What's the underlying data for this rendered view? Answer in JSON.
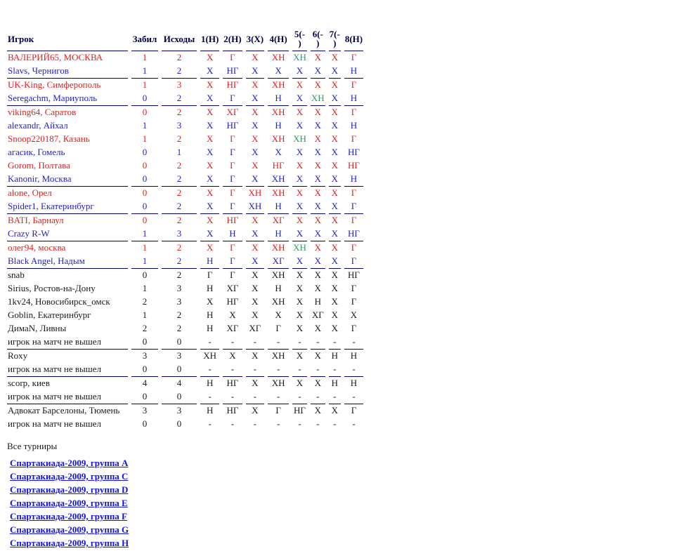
{
  "colors": {
    "red": "#dd2222",
    "blue": "#2222cc",
    "green": "#339966",
    "black": "#1a1a1a",
    "header": "#000044",
    "line": "#000066",
    "link": "#1111ee",
    "bg": "#ffffff"
  },
  "table": {
    "columns": [
      "Игрок",
      "Забил",
      "Исходы",
      "1(Н)",
      "2(Н)",
      "3(Х)",
      "4(Н)",
      "5(-\n)",
      "6(-\n)",
      "7(-\n)",
      "8(Н)"
    ],
    "rows": [
      {
        "name": "ВАЛЕРИЙ65, МОСКВА",
        "color": "red",
        "scored": "1",
        "outcomes": "2",
        "results": [
          "Х",
          "Г",
          "Х",
          "ХН",
          "ХН",
          "Х",
          "Х",
          "Г"
        ],
        "green": [
          4
        ],
        "end": false
      },
      {
        "name": "Slavs, Чернигов",
        "color": "blue",
        "scored": "1",
        "outcomes": "2",
        "results": [
          "Х",
          "НГ",
          "Х",
          "Х",
          "Х",
          "Х",
          "Х",
          "Н"
        ],
        "green": [],
        "end": true
      },
      {
        "name": "UK-King, Симферополь",
        "color": "red",
        "scored": "1",
        "outcomes": "3",
        "results": [
          "Х",
          "НГ",
          "Х",
          "ХН",
          "Х",
          "Х",
          "Х",
          "Г"
        ],
        "green": [],
        "end": false
      },
      {
        "name": "Seregachm, Мариуполь",
        "color": "blue",
        "scored": "0",
        "outcomes": "2",
        "results": [
          "Х",
          "Г",
          "Х",
          "Н",
          "Х",
          "ХН",
          "Х",
          "Н"
        ],
        "green": [
          5
        ],
        "end": true
      },
      {
        "name": "viking64, Саратов",
        "color": "red",
        "scored": "0",
        "outcomes": "2",
        "results": [
          "Х",
          "ХГ",
          "Х",
          "ХН",
          "Х",
          "Х",
          "Х",
          "Г"
        ],
        "green": [],
        "end": false
      },
      {
        "name": "alexandr, Айхал",
        "color": "blue",
        "scored": "1",
        "outcomes": "3",
        "results": [
          "Х",
          "НГ",
          "Х",
          "Н",
          "Х",
          "Х",
          "Х",
          "Н"
        ],
        "green": [],
        "end": false
      },
      {
        "name": "Snoop220187, Казань",
        "color": "red",
        "scored": "1",
        "outcomes": "2",
        "results": [
          "Х",
          "Г",
          "Х",
          "ХН",
          "ХН",
          "Х",
          "Х",
          "Г"
        ],
        "green": [
          4
        ],
        "end": false
      },
      {
        "name": "агасик, Гомель",
        "color": "blue",
        "scored": "0",
        "outcomes": "1",
        "results": [
          "Х",
          "Г",
          "Х",
          "Х",
          "Х",
          "Х",
          "Х",
          "НГ"
        ],
        "green": [],
        "end": false
      },
      {
        "name": "Gorom, Полтава",
        "color": "red",
        "scored": "0",
        "outcomes": "2",
        "results": [
          "Х",
          "Г",
          "Х",
          "НГ",
          "Х",
          "Х",
          "Х",
          "НГ"
        ],
        "green": [],
        "end": false
      },
      {
        "name": "Kanonir, Москва",
        "color": "blue",
        "scored": "0",
        "outcomes": "2",
        "results": [
          "Х",
          "Г",
          "Х",
          "ХН",
          "Х",
          "Х",
          "Х",
          "Н"
        ],
        "green": [],
        "end": true
      },
      {
        "name": "alone, Орел",
        "color": "red",
        "scored": "0",
        "outcomes": "2",
        "results": [
          "Х",
          "Г",
          "ХН",
          "ХН",
          "Х",
          "Х",
          "Х",
          "Г"
        ],
        "green": [],
        "end": false
      },
      {
        "name": "Spider1, Екатеринбург",
        "color": "blue",
        "scored": "0",
        "outcomes": "2",
        "results": [
          "Х",
          "Г",
          "ХН",
          "Н",
          "Х",
          "Х",
          "Х",
          "Г"
        ],
        "green": [],
        "end": true
      },
      {
        "name": "BATI, Барнаул",
        "color": "red",
        "scored": "0",
        "outcomes": "2",
        "results": [
          "Х",
          "НГ",
          "Х",
          "ХГ",
          "Х",
          "Х",
          "Х",
          "Г"
        ],
        "green": [],
        "end": false
      },
      {
        "name": "Crazy R-W",
        "color": "blue",
        "scored": "1",
        "outcomes": "3",
        "results": [
          "Х",
          "Н",
          "Х",
          "Н",
          "Х",
          "Х",
          "Х",
          "НГ"
        ],
        "green": [],
        "end": true
      },
      {
        "name": "олег94, москва",
        "color": "red",
        "scored": "1",
        "outcomes": "2",
        "results": [
          "Х",
          "Г",
          "Х",
          "ХН",
          "ХН",
          "Х",
          "Х",
          "Г"
        ],
        "green": [
          4
        ],
        "end": false
      },
      {
        "name": "Black Angel, Надым",
        "color": "blue",
        "scored": "1",
        "outcomes": "2",
        "results": [
          "Н",
          "Г",
          "Х",
          "ХГ",
          "Х",
          "Х",
          "Х",
          "Г"
        ],
        "green": [],
        "end": true
      },
      {
        "name": "snab",
        "color": "black",
        "scored": "0",
        "outcomes": "2",
        "results": [
          "Г",
          "Г",
          "Х",
          "ХН",
          "Х",
          "Х",
          "Х",
          "НГ"
        ],
        "green": [],
        "end": false
      },
      {
        "name": "Sirius, Ростов-на-Дону",
        "color": "black",
        "scored": "1",
        "outcomes": "3",
        "results": [
          "Н",
          "ХГ",
          "Х",
          "Н",
          "Х",
          "Х",
          "Х",
          "Г"
        ],
        "green": [],
        "end": false
      },
      {
        "name": "1kv24, Новосибирск_омск",
        "color": "black",
        "scored": "2",
        "outcomes": "3",
        "results": [
          "Х",
          "НГ",
          "Х",
          "ХН",
          "Х",
          "Н",
          "Х",
          "Г"
        ],
        "green": [],
        "end": false
      },
      {
        "name": "Goblin, Екатеринбург",
        "color": "black",
        "scored": "1",
        "outcomes": "2",
        "results": [
          "Н",
          "Х",
          "Х",
          "Х",
          "Х",
          "ХГ",
          "Х",
          "Х"
        ],
        "green": [],
        "end": false
      },
      {
        "name": "ДимаN, Ливны",
        "color": "black",
        "scored": "2",
        "outcomes": "2",
        "results": [
          "Н",
          "ХГ",
          "ХГ",
          "Г",
          "Х",
          "Х",
          "Х",
          "Г"
        ],
        "green": [],
        "end": false
      },
      {
        "name": "игрок на матч не вышел",
        "color": "black",
        "scored": "0",
        "outcomes": "0",
        "results": [
          "-",
          "-",
          "-",
          "-",
          "-",
          "-",
          "-",
          "-"
        ],
        "green": [],
        "end": true
      },
      {
        "name": "Roxy",
        "color": "black",
        "scored": "3",
        "outcomes": "3",
        "results": [
          "ХН",
          "Х",
          "Х",
          "ХН",
          "Х",
          "Х",
          "Н",
          "Н"
        ],
        "green": [],
        "end": false
      },
      {
        "name": "игрок на матч не вышел",
        "color": "black",
        "scored": "0",
        "outcomes": "0",
        "results": [
          "-",
          "-",
          "-",
          "-",
          "-",
          "-",
          "-",
          "-"
        ],
        "green": [],
        "end": true
      },
      {
        "name": "scorp, киев",
        "color": "black",
        "scored": "4",
        "outcomes": "4",
        "results": [
          "Н",
          "НГ",
          "Х",
          "ХН",
          "Х",
          "Х",
          "Н",
          "Н"
        ],
        "green": [],
        "end": false
      },
      {
        "name": "игрок на матч не вышел",
        "color": "black",
        "scored": "0",
        "outcomes": "0",
        "results": [
          "-",
          "-",
          "-",
          "-",
          "-",
          "-",
          "-",
          "-"
        ],
        "green": [],
        "end": true
      },
      {
        "name": "Адвокат Барселоны, Тюмень",
        "color": "black",
        "scored": "3",
        "outcomes": "3",
        "results": [
          "Н",
          "НГ",
          "Х",
          "Г",
          "НГ",
          "Х",
          "Х",
          "Г"
        ],
        "green": [],
        "end": false
      },
      {
        "name": "игрок на матч не вышел",
        "color": "black",
        "scored": "0",
        "outcomes": "0",
        "results": [
          "-",
          "-",
          "-",
          "-",
          "-",
          "-",
          "-",
          "-"
        ],
        "green": [],
        "end": false
      }
    ]
  },
  "footer": {
    "all_label": "Все турниры",
    "links": [
      "Спартакиада-2009, группа A",
      "Спартакиада-2009, группа C",
      "Спартакиада-2009, группа D",
      "Спартакиада-2009, группа E",
      "Спартакиада-2009, группа F",
      "Спартакиада-2009, группа G",
      "Спартакиада-2009, группа H"
    ]
  }
}
